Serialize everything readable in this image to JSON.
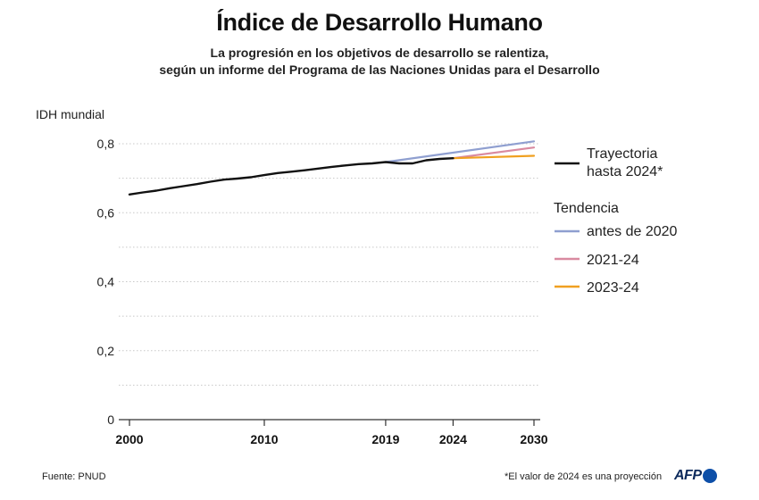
{
  "title": "Índice de Desarrollo Humano",
  "subtitle_line1": "La progresión en los objetivos de desarrollo se ralentiza,",
  "subtitle_line2": "según un informe del Programa de las Naciones Unidas para el Desarrollo",
  "source": "Fuente: PNUD",
  "footnote": "*El valor de 2024 es una proyección",
  "logo": "AFP",
  "colors": {
    "trajectory": "#111111",
    "before2020": "#8f9fd0",
    "t2021_24": "#d98aa0",
    "t2023_24": "#f0a020",
    "grid": "#c8c8c8",
    "axis": "#333333"
  },
  "chart_data": {
    "type": "line",
    "ylabel": "IDH mundial",
    "ylim": [
      0,
      0.8
    ],
    "yticks": [
      0,
      0.2,
      0.4,
      0.6,
      0.8
    ],
    "ytick_labels": [
      "0",
      "0,2",
      "0,4",
      "0,6",
      "0,8"
    ],
    "ygrid": [
      0.1,
      0.2,
      0.3,
      0.4,
      0.5,
      0.6,
      0.7,
      0.8
    ],
    "xlim": [
      2000,
      2030
    ],
    "xticks": [
      2000,
      2010,
      2019,
      2024,
      2030
    ],
    "xtick_labels": [
      "2000",
      "2010",
      "2019",
      "2024",
      "2030"
    ],
    "legend_group_title": "Tendencia",
    "series": [
      {
        "name": "Trayectoria hasta 2024*",
        "legend_lines": [
          "Trayectoria",
          "hasta 2024*"
        ],
        "color_key": "trajectory",
        "x": [
          2000,
          2001,
          2002,
          2003,
          2004,
          2005,
          2006,
          2007,
          2008,
          2009,
          2010,
          2011,
          2012,
          2013,
          2014,
          2015,
          2016,
          2017,
          2018,
          2019,
          2020,
          2021,
          2022,
          2023,
          2024
        ],
        "y": [
          0.653,
          0.659,
          0.664,
          0.671,
          0.677,
          0.683,
          0.69,
          0.696,
          0.699,
          0.703,
          0.709,
          0.715,
          0.719,
          0.723,
          0.728,
          0.733,
          0.737,
          0.741,
          0.743,
          0.747,
          0.743,
          0.743,
          0.752,
          0.756,
          0.758
        ]
      },
      {
        "name": "antes de 2020",
        "legend_lines": [
          "antes de 2020"
        ],
        "color_key": "before2020",
        "x": [
          2019,
          2030
        ],
        "y": [
          0.747,
          0.807
        ]
      },
      {
        "name": "2021-24",
        "legend_lines": [
          "2021-24"
        ],
        "color_key": "t2021_24",
        "x": [
          2024,
          2030
        ],
        "y": [
          0.758,
          0.789
        ]
      },
      {
        "name": "2023-24",
        "legend_lines": [
          "2023-24"
        ],
        "color_key": "t2023_24",
        "x": [
          2024,
          2030
        ],
        "y": [
          0.758,
          0.765
        ]
      }
    ]
  }
}
